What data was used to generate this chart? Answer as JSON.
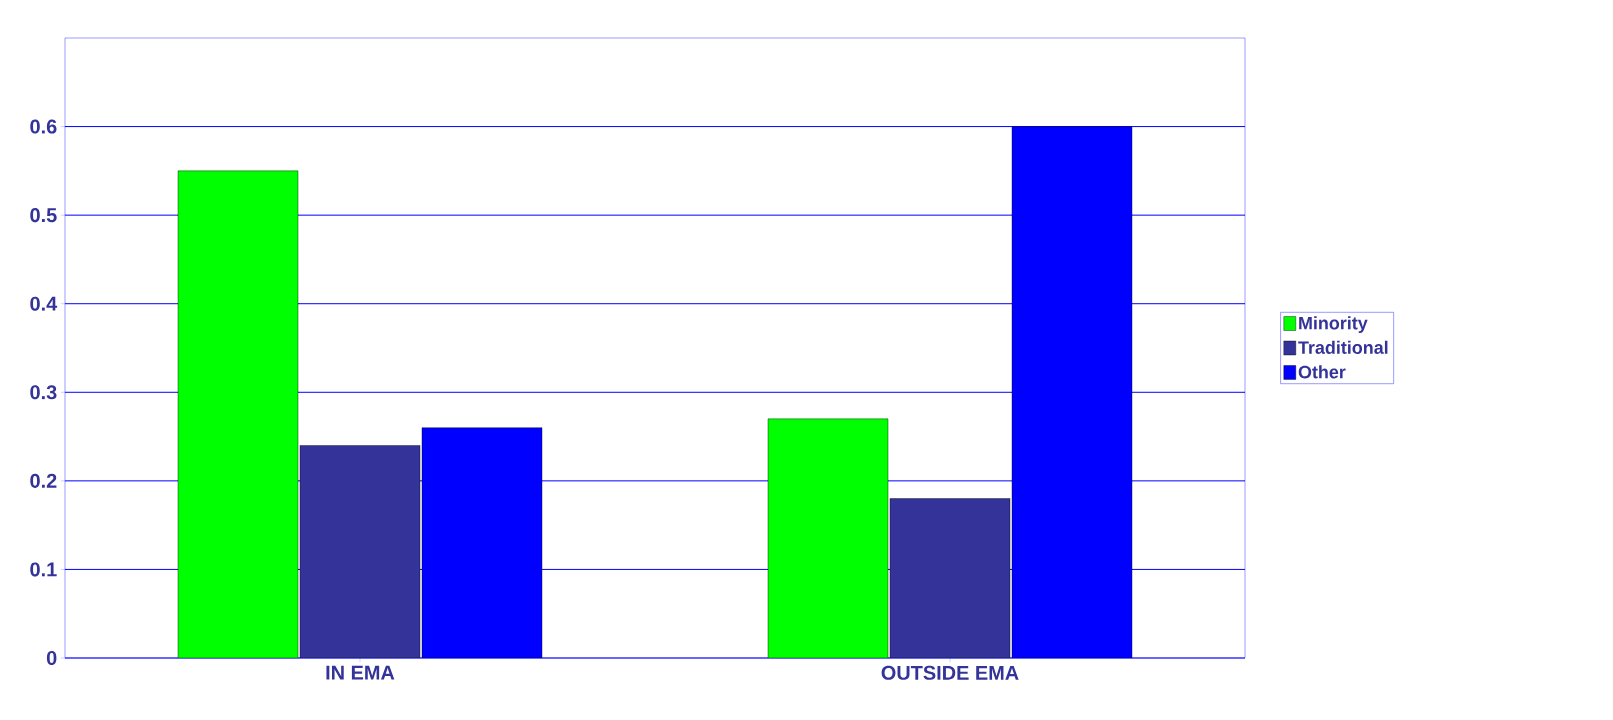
{
  "chart_data": {
    "type": "bar",
    "categories": [
      "IN EMA",
      "OUTSIDE EMA"
    ],
    "series": [
      {
        "name": "Minority",
        "color": "#00ff00",
        "values": [
          0.55,
          0.27
        ]
      },
      {
        "name": "Traditional",
        "color": "#333399",
        "values": [
          0.24,
          0.18
        ]
      },
      {
        "name": "Other",
        "color": "#0000ff",
        "values": [
          0.26,
          0.6
        ]
      }
    ],
    "ylim": [
      0,
      0.7
    ],
    "yticks": [
      0,
      0.1,
      0.2,
      0.3,
      0.4,
      0.5,
      0.6
    ],
    "grid": "y",
    "legend": "right"
  }
}
